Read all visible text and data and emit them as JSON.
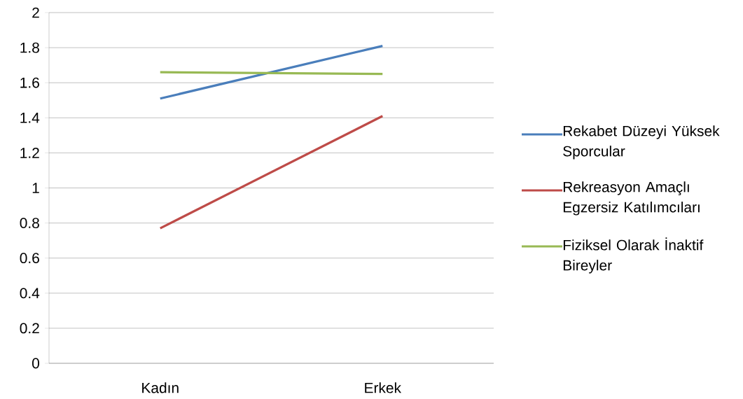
{
  "chart_data": {
    "type": "line",
    "categories": [
      "Kadın",
      "Erkek"
    ],
    "series": [
      {
        "name": "Rekabet Düzeyi Yüksek Sporcular",
        "color": "#4a7ebb",
        "values": [
          1.51,
          1.81
        ]
      },
      {
        "name": "Rekreasyon Amaçlı Egzersiz Katılımcıları",
        "color": "#be4b48",
        "values": [
          0.77,
          1.41
        ]
      },
      {
        "name": "Fiziksel Olarak İnaktif Bireyler",
        "color": "#98b954",
        "values": [
          1.66,
          1.65
        ]
      }
    ],
    "ylim": [
      0,
      2
    ],
    "yticks": [
      0,
      0.2,
      0.4,
      0.6,
      0.8,
      1,
      1.2,
      1.4,
      1.6,
      1.8,
      2
    ],
    "grid": "y",
    "legend": "right",
    "marker": "none",
    "line_style": "solid"
  }
}
